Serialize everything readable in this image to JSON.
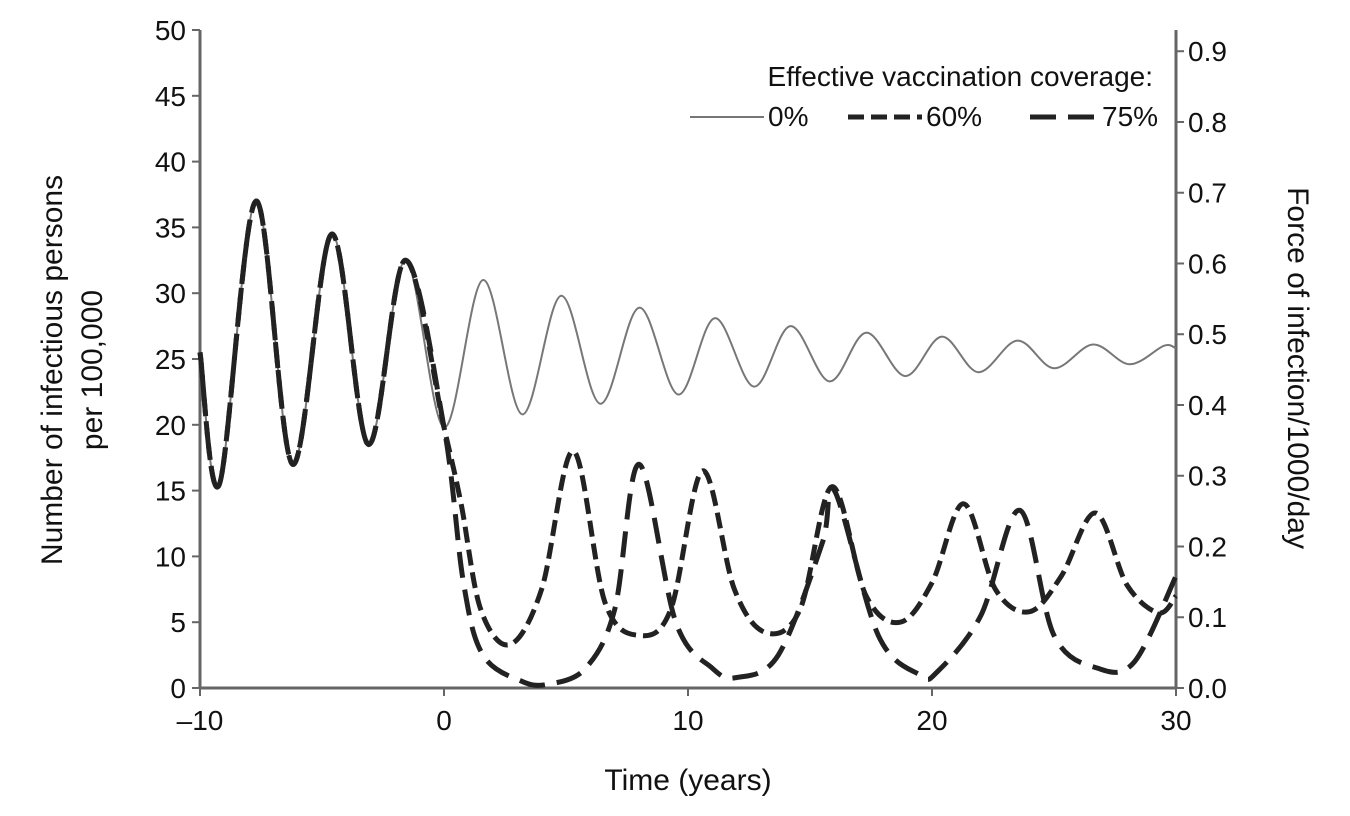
{
  "chart_data": {
    "type": "line",
    "title": "",
    "xlabel": "Time (years)",
    "ylabel": "Number of infectious persons\nper 100,000",
    "y2label": "Force of infection/1000/day",
    "xlim": [
      -10,
      30
    ],
    "ylim": [
      0,
      50
    ],
    "y2lim": [
      0,
      0.93
    ],
    "grid": false,
    "x_ticks": [
      "–10",
      "0",
      "10",
      "20",
      "30"
    ],
    "x_tick_values": [
      -10,
      0,
      10,
      20,
      30
    ],
    "y_ticks": [
      "0",
      "5",
      "10",
      "15",
      "20",
      "25",
      "30",
      "35",
      "40",
      "45",
      "50"
    ],
    "y_tick_values": [
      0,
      5,
      10,
      15,
      20,
      25,
      30,
      35,
      40,
      45,
      50
    ],
    "y2_ticks": [
      "0.0",
      "0.1",
      "0.2",
      "0.3",
      "0.4",
      "0.5",
      "0.6",
      "0.7",
      "0.8",
      "0.9"
    ],
    "y2_tick_values": [
      0.0,
      0.1,
      0.2,
      0.3,
      0.4,
      0.5,
      0.6,
      0.7,
      0.8,
      0.9
    ],
    "legend": {
      "title": "Effective vaccination coverage:",
      "placement": "top-right"
    },
    "series": [
      {
        "name": "0%",
        "style": "solid-thin",
        "color": "#777777",
        "x": [
          -10,
          -9.2,
          -7.7,
          -6.2,
          -4.6,
          -3.1,
          -1.6,
          0,
          1.6,
          3.2,
          4.8,
          6.4,
          8.0,
          9.6,
          11.1,
          12.7,
          14.2,
          15.8,
          17.3,
          18.9,
          20.4,
          21.9,
          23.5,
          25.0,
          26.6,
          28.1,
          29.5,
          30
        ],
        "values": [
          25.5,
          15.5,
          37.0,
          17.0,
          34.5,
          18.5,
          32.5,
          19.8,
          31.0,
          20.8,
          29.8,
          21.6,
          28.9,
          22.3,
          28.1,
          22.9,
          27.5,
          23.3,
          27.0,
          23.7,
          26.7,
          24.0,
          26.4,
          24.3,
          26.1,
          24.6,
          26.0,
          25.8
        ]
      },
      {
        "name": "60%",
        "style": "dashed",
        "color": "#222222",
        "x": [
          -10,
          -9.2,
          -7.7,
          -6.2,
          -4.6,
          -3.1,
          -1.6,
          0,
          0.7,
          1.5,
          2.7,
          4.0,
          5.3,
          6.6,
          8.0,
          9.3,
          10.6,
          11.9,
          13.2,
          14.6,
          15.9,
          17.3,
          18.7,
          20.0,
          21.3,
          22.6,
          24.0,
          25.3,
          26.7,
          28.0,
          29.3,
          30
        ],
        "values": [
          25.5,
          15.5,
          37.0,
          17.0,
          34.5,
          18.5,
          32.5,
          19.8,
          14.0,
          6.0,
          3.3,
          7.5,
          18.0,
          6.5,
          4.0,
          6.0,
          16.5,
          7.5,
          4.2,
          6.0,
          15.3,
          7.0,
          5.0,
          8.0,
          14.0,
          7.5,
          5.8,
          8.5,
          13.3,
          7.8,
          5.7,
          7.0
        ]
      },
      {
        "name": "75%",
        "style": "long-dashed",
        "color": "#222222",
        "x": [
          -10,
          -9.2,
          -7.7,
          -6.2,
          -4.6,
          -3.1,
          -1.6,
          0,
          0.8,
          1.6,
          3.2,
          4.3,
          5.8,
          7.0,
          8.0,
          9.5,
          11.0,
          12.0,
          13.7,
          15.5,
          16.0,
          17.8,
          19.5,
          20.2,
          22.0,
          23.6,
          25.0,
          26.8,
          28.3,
          30
        ],
        "values": [
          25.5,
          15.5,
          37.0,
          17.0,
          34.5,
          18.5,
          32.5,
          19.8,
          8.0,
          2.5,
          0.5,
          0.3,
          1.5,
          6.0,
          17.0,
          5.0,
          1.5,
          0.8,
          2.5,
          11.0,
          15.0,
          4.0,
          1.0,
          1.2,
          5.5,
          13.5,
          4.0,
          1.5,
          2.0,
          8.5
        ]
      }
    ]
  }
}
